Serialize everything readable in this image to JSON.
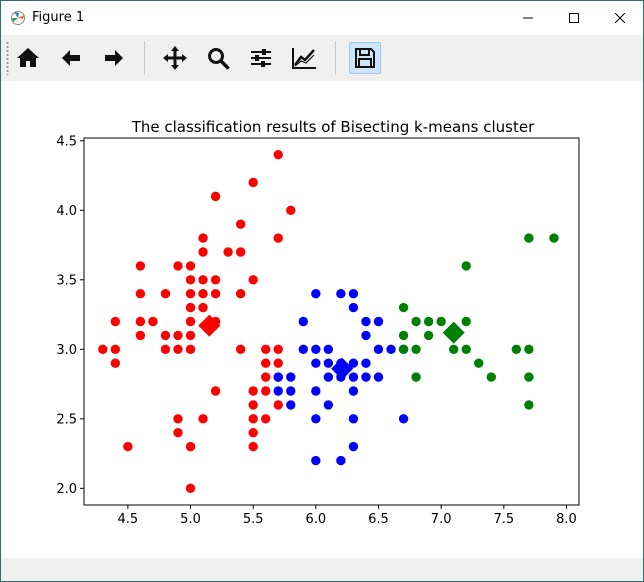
{
  "window": {
    "title": "Figure 1",
    "app_icon": "matplotlib-icon",
    "controls": [
      "minimize-icon",
      "maximize-icon",
      "close-icon"
    ]
  },
  "toolbar": {
    "tools": [
      {
        "name": "home",
        "icon": "home-icon"
      },
      {
        "name": "back",
        "icon": "arrow-left-icon"
      },
      {
        "name": "forward",
        "icon": "arrow-right-icon"
      },
      {
        "name": "pan",
        "icon": "move-icon"
      },
      {
        "name": "zoom",
        "icon": "zoom-icon"
      },
      {
        "name": "subplots",
        "icon": "sliders-icon"
      },
      {
        "name": "customize",
        "icon": "line-chart-icon"
      },
      {
        "name": "save",
        "icon": "save-icon",
        "active": true
      }
    ]
  },
  "chart_data": {
    "type": "scatter",
    "title": "The classification results of Bisecting k-means cluster",
    "xlabel": "",
    "ylabel": "",
    "xlim": [
      4.15,
      8.1
    ],
    "ylim": [
      1.88,
      4.52
    ],
    "x_ticks": [
      "4.5",
      "5.0",
      "5.5",
      "6.0",
      "6.5",
      "7.0",
      "7.5",
      "8.0"
    ],
    "y_ticks": [
      "2.0",
      "2.5",
      "3.0",
      "3.5",
      "4.0",
      "4.5"
    ],
    "x_tick_values": [
      4.5,
      5.0,
      5.5,
      6.0,
      6.5,
      7.0,
      7.5,
      8.0
    ],
    "y_tick_values": [
      2.0,
      2.5,
      3.0,
      3.5,
      4.0,
      4.5
    ],
    "grid": false,
    "legend": "none",
    "series": [
      {
        "color": "#ff0000",
        "marker": "circle",
        "points": [
          [
            5.7,
            4.4
          ],
          [
            5.5,
            4.2
          ],
          [
            5.2,
            4.1
          ],
          [
            5.8,
            4.0
          ],
          [
            5.1,
            3.8
          ],
          [
            5.4,
            3.9
          ],
          [
            5.7,
            3.8
          ],
          [
            5.4,
            3.7
          ],
          [
            5.1,
            3.7
          ],
          [
            5.3,
            3.7
          ],
          [
            5.0,
            3.6
          ],
          [
            4.6,
            3.6
          ],
          [
            4.9,
            3.6
          ],
          [
            5.0,
            3.5
          ],
          [
            5.1,
            3.5
          ],
          [
            5.2,
            3.5
          ],
          [
            5.5,
            3.5
          ],
          [
            5.0,
            3.4
          ],
          [
            5.1,
            3.4
          ],
          [
            5.2,
            3.4
          ],
          [
            5.4,
            3.4
          ],
          [
            4.6,
            3.4
          ],
          [
            4.8,
            3.4
          ],
          [
            5.0,
            3.3
          ],
          [
            5.1,
            3.3
          ],
          [
            4.4,
            3.2
          ],
          [
            4.6,
            3.2
          ],
          [
            4.7,
            3.2
          ],
          [
            5.0,
            3.2
          ],
          [
            5.2,
            3.2
          ],
          [
            4.8,
            3.1
          ],
          [
            4.9,
            3.1
          ],
          [
            4.6,
            3.1
          ],
          [
            5.0,
            3.1
          ],
          [
            4.3,
            3.0
          ],
          [
            4.4,
            3.0
          ],
          [
            4.8,
            3.0
          ],
          [
            4.9,
            3.0
          ],
          [
            5.0,
            3.0
          ],
          [
            5.4,
            3.0
          ],
          [
            5.6,
            3.0
          ],
          [
            5.7,
            3.0
          ],
          [
            4.4,
            2.9
          ],
          [
            5.6,
            2.9
          ],
          [
            5.7,
            2.9
          ],
          [
            5.6,
            2.8
          ],
          [
            5.7,
            2.8
          ],
          [
            5.5,
            2.7
          ],
          [
            5.2,
            2.7
          ],
          [
            5.6,
            2.7
          ],
          [
            5.7,
            2.6
          ],
          [
            5.5,
            2.6
          ],
          [
            5.5,
            2.5
          ],
          [
            5.6,
            2.5
          ],
          [
            4.9,
            2.5
          ],
          [
            5.1,
            2.5
          ],
          [
            5.5,
            2.4
          ],
          [
            4.9,
            2.4
          ],
          [
            4.5,
            2.3
          ],
          [
            5.0,
            2.3
          ],
          [
            5.5,
            2.3
          ],
          [
            5.0,
            2.0
          ]
        ]
      },
      {
        "color": "#0000ff",
        "marker": "circle",
        "points": [
          [
            6.0,
            3.4
          ],
          [
            6.2,
            3.4
          ],
          [
            6.3,
            3.4
          ],
          [
            6.3,
            3.3
          ],
          [
            6.4,
            3.2
          ],
          [
            6.5,
            3.2
          ],
          [
            5.9,
            3.2
          ],
          [
            6.4,
            3.1
          ],
          [
            6.0,
            3.0
          ],
          [
            6.1,
            3.0
          ],
          [
            5.9,
            3.0
          ],
          [
            6.5,
            3.0
          ],
          [
            6.6,
            3.0
          ],
          [
            6.7,
            3.0
          ],
          [
            5.7,
            2.8
          ],
          [
            5.8,
            2.8
          ],
          [
            6.1,
            2.9
          ],
          [
            6.2,
            2.9
          ],
          [
            6.4,
            2.9
          ],
          [
            6.3,
            2.9
          ],
          [
            6.0,
            2.9
          ],
          [
            5.7,
            2.7
          ],
          [
            6.2,
            2.8
          ],
          [
            6.3,
            2.8
          ],
          [
            6.4,
            2.8
          ],
          [
            6.1,
            2.8
          ],
          [
            6.5,
            2.8
          ],
          [
            6.3,
            2.7
          ],
          [
            6.0,
            2.7
          ],
          [
            5.8,
            2.7
          ],
          [
            5.8,
            2.6
          ],
          [
            6.1,
            2.6
          ],
          [
            6.3,
            2.5
          ],
          [
            6.0,
            2.5
          ],
          [
            6.7,
            2.5
          ],
          [
            6.2,
            2.2
          ],
          [
            6.0,
            2.2
          ],
          [
            6.3,
            2.3
          ]
        ]
      },
      {
        "color": "#008000",
        "marker": "circle",
        "points": [
          [
            7.7,
            3.8
          ],
          [
            7.9,
            3.8
          ],
          [
            7.2,
            3.6
          ],
          [
            6.7,
            3.3
          ],
          [
            6.8,
            3.2
          ],
          [
            6.9,
            3.2
          ],
          [
            7.0,
            3.2
          ],
          [
            7.2,
            3.2
          ],
          [
            6.7,
            3.1
          ],
          [
            6.9,
            3.1
          ],
          [
            6.7,
            3.0
          ],
          [
            7.1,
            3.0
          ],
          [
            7.2,
            3.0
          ],
          [
            7.6,
            3.0
          ],
          [
            7.7,
            3.0
          ],
          [
            6.8,
            3.0
          ],
          [
            7.3,
            2.9
          ],
          [
            6.8,
            2.8
          ],
          [
            7.4,
            2.8
          ],
          [
            7.7,
            2.8
          ],
          [
            7.7,
            2.6
          ]
        ]
      }
    ],
    "centroids": [
      {
        "color": "#ff0000",
        "marker": "diamond",
        "x": 5.15,
        "y": 3.17
      },
      {
        "color": "#0000ff",
        "marker": "diamond",
        "x": 6.21,
        "y": 2.86
      },
      {
        "color": "#008000",
        "marker": "diamond",
        "x": 7.1,
        "y": 3.12
      }
    ]
  }
}
